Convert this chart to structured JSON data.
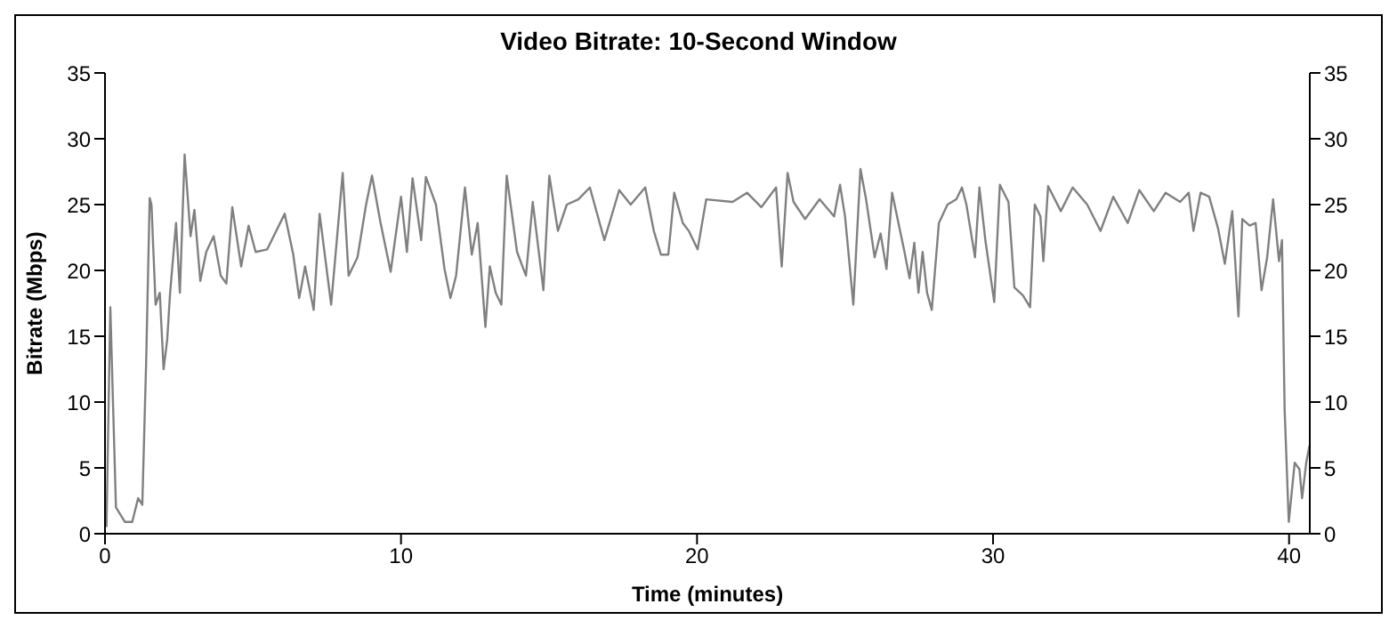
{
  "chart_data": {
    "type": "line",
    "title": "Video Bitrate: 10-Second Window",
    "xlabel": "Time (minutes)",
    "ylabel": "Bitrate (Mbps)",
    "xlim": [
      0,
      40.7
    ],
    "xticks": [
      0,
      10,
      20,
      30,
      40
    ],
    "ylim": [
      0,
      35
    ],
    "yticks": [
      0,
      5,
      10,
      15,
      20,
      25,
      30,
      35
    ],
    "y2lim": [
      0,
      35
    ],
    "y2ticks": [
      0,
      5,
      10,
      15,
      20,
      25,
      30,
      35
    ],
    "grid": false,
    "legend": false,
    "marker": "none",
    "line_style": "solid",
    "series": [
      {
        "color": "#808080",
        "x": [
          0.05,
          0.18,
          0.37,
          0.67,
          0.92,
          1.12,
          1.26,
          1.39,
          1.51,
          1.57,
          1.71,
          1.85,
          1.98,
          2.1,
          2.2,
          2.4,
          2.53,
          2.69,
          2.89,
          3.02,
          3.22,
          3.42,
          3.67,
          3.91,
          4.1,
          4.3,
          4.6,
          4.85,
          5.09,
          5.48,
          6.07,
          6.36,
          6.56,
          6.76,
          7.05,
          7.25,
          7.64,
          8.03,
          8.23,
          8.53,
          8.82,
          9.02,
          9.31,
          9.65,
          10.0,
          10.2,
          10.39,
          10.68,
          10.84,
          11.18,
          11.47,
          11.67,
          11.86,
          12.16,
          12.39,
          12.59,
          12.85,
          13.0,
          13.2,
          13.39,
          13.57,
          13.92,
          14.22,
          14.45,
          14.81,
          15.01,
          15.3,
          15.6,
          15.99,
          16.38,
          16.87,
          17.37,
          17.76,
          18.25,
          18.54,
          18.78,
          19.03,
          19.23,
          19.52,
          19.72,
          20.02,
          20.31,
          21.2,
          21.69,
          22.17,
          22.67,
          22.86,
          23.06,
          23.26,
          23.65,
          24.14,
          24.63,
          24.83,
          25.0,
          25.28,
          25.52,
          25.71,
          26.0,
          26.2,
          26.4,
          26.59,
          26.99,
          27.18,
          27.34,
          27.48,
          27.62,
          27.77,
          27.93,
          28.17,
          28.46,
          28.76,
          28.95,
          29.1,
          29.39,
          29.54,
          29.74,
          30.04,
          30.23,
          30.52,
          30.72,
          31.01,
          31.25,
          31.41,
          31.6,
          31.7,
          31.86,
          32.29,
          32.69,
          33.18,
          33.63,
          34.06,
          34.55,
          34.94,
          35.43,
          35.83,
          36.32,
          36.61,
          36.77,
          37.01,
          37.3,
          37.6,
          37.83,
          38.08,
          38.29,
          38.42,
          38.67,
          38.87,
          39.07,
          39.26,
          39.46,
          39.66,
          39.76,
          39.85,
          39.99,
          40.19,
          40.35,
          40.44,
          40.58,
          40.69
        ],
        "values": [
          0.5,
          17.2,
          2.0,
          0.9,
          0.9,
          2.7,
          2.2,
          13,
          25.5,
          25,
          17.4,
          18.3,
          12.5,
          14.7,
          18.3,
          23.6,
          18.3,
          28.8,
          22.6,
          24.6,
          19.2,
          21.4,
          22.6,
          19.6,
          19,
          24.8,
          20.3,
          23.4,
          21.4,
          21.6,
          24.3,
          21.2,
          17.9,
          20.3,
          17,
          24.3,
          17.4,
          27.4,
          19.6,
          21,
          25,
          27.2,
          23.6,
          19.9,
          25.6,
          21.4,
          27,
          22.3,
          27.1,
          25,
          20.1,
          17.9,
          19.6,
          26.3,
          21.2,
          23.6,
          15.7,
          20.3,
          18.3,
          17.4,
          27.2,
          21.4,
          19.6,
          25.2,
          18.5,
          27.2,
          23,
          25,
          25.4,
          26.3,
          22.3,
          26.1,
          25,
          26.3,
          23,
          21.2,
          21.2,
          25.9,
          23.6,
          23,
          21.6,
          25.4,
          25.2,
          25.9,
          24.8,
          26.3,
          20.3,
          27.4,
          25.2,
          23.9,
          25.4,
          24.1,
          26.5,
          24.1,
          17.4,
          27.7,
          25.4,
          21,
          22.8,
          20.1,
          25.9,
          21.6,
          19.4,
          22.1,
          18.3,
          21.4,
          18.3,
          17,
          23.6,
          25,
          25.4,
          26.3,
          25,
          21,
          26.3,
          22.3,
          17.6,
          26.5,
          25.2,
          18.7,
          18.1,
          17.2,
          25,
          24.1,
          20.7,
          26.4,
          24.5,
          26.3,
          25,
          23,
          25.6,
          23.6,
          26.1,
          24.5,
          25.9,
          25.2,
          25.9,
          23,
          25.9,
          25.6,
          23.2,
          20.5,
          24.5,
          16.5,
          23.9,
          23.4,
          23.6,
          18.5,
          21,
          25.4,
          20.7,
          22.3,
          9.4,
          0.9,
          5.4,
          4.9,
          2.7,
          5.4,
          6.7
        ]
      }
    ]
  }
}
